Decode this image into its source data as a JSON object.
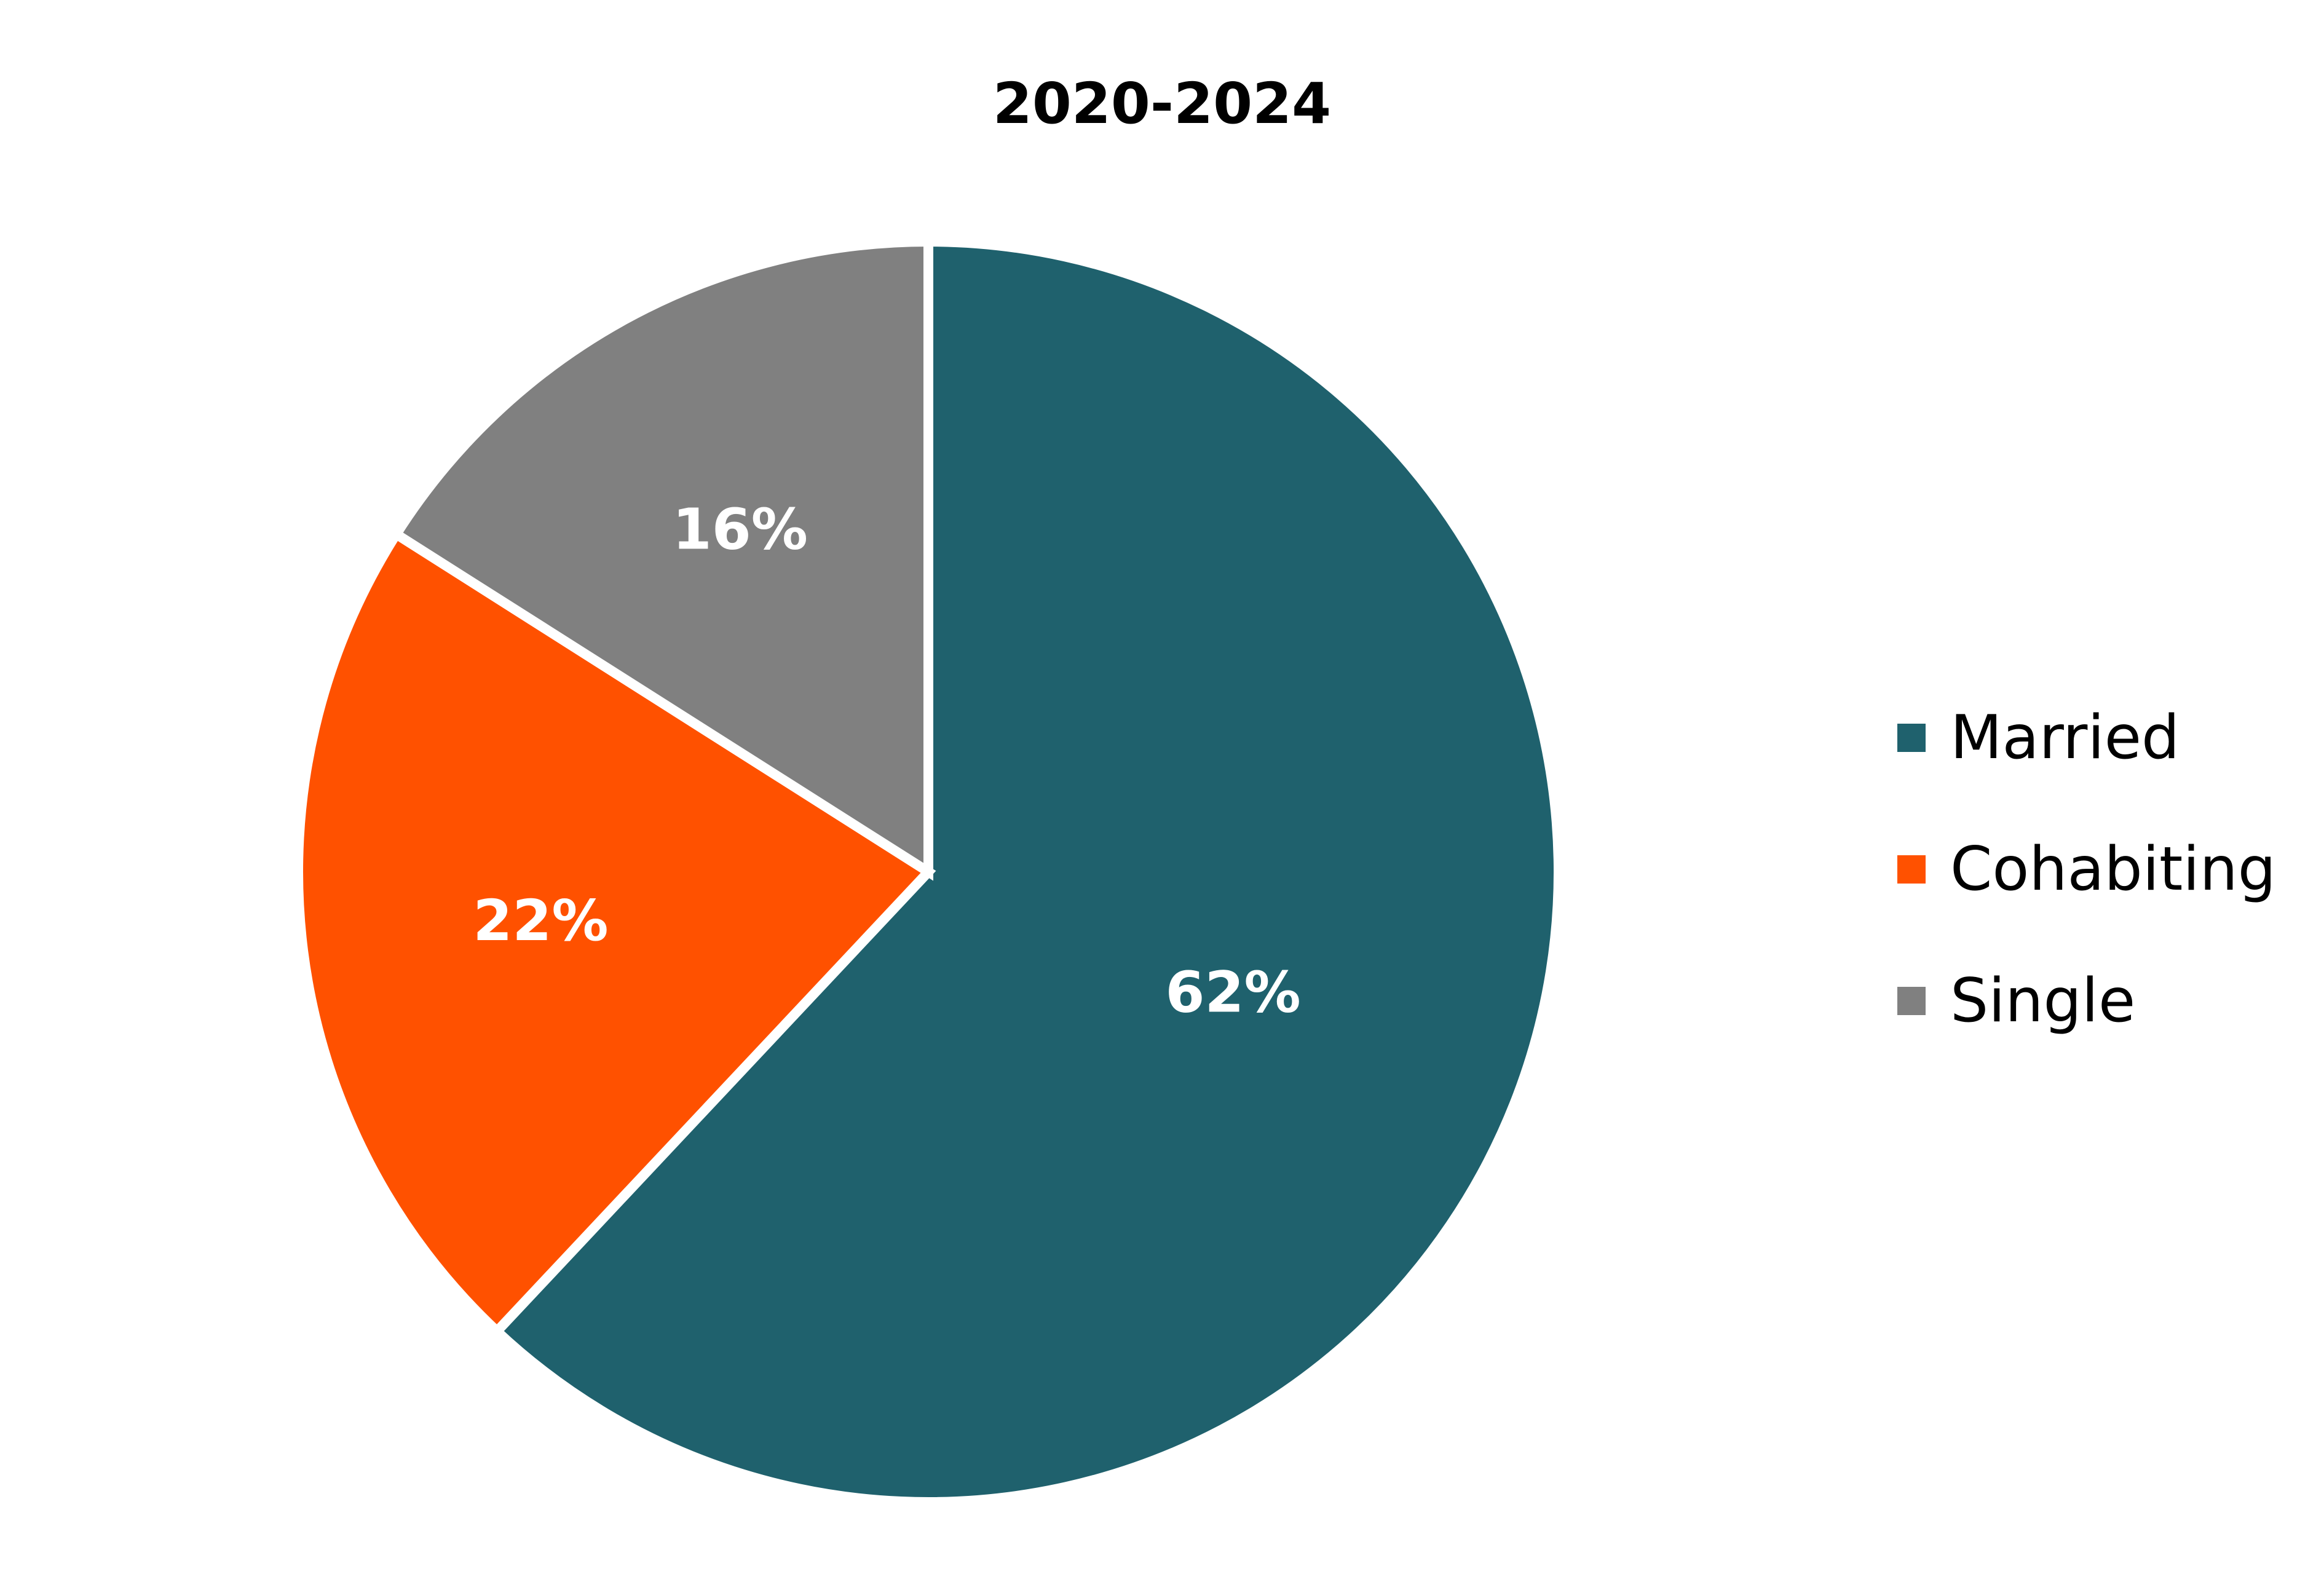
{
  "chart_data": {
    "type": "pie",
    "title": "2020-2024",
    "categories": [
      "Married",
      "Cohabiting",
      "Single"
    ],
    "values": [
      62,
      22,
      16
    ],
    "labels": [
      "62%",
      "22%",
      "16%"
    ],
    "colors": [
      "#1f616d",
      "#ff5100",
      "#808080"
    ],
    "start_angle_deg": 0,
    "direction": "clockwise",
    "legend_position": "right"
  }
}
